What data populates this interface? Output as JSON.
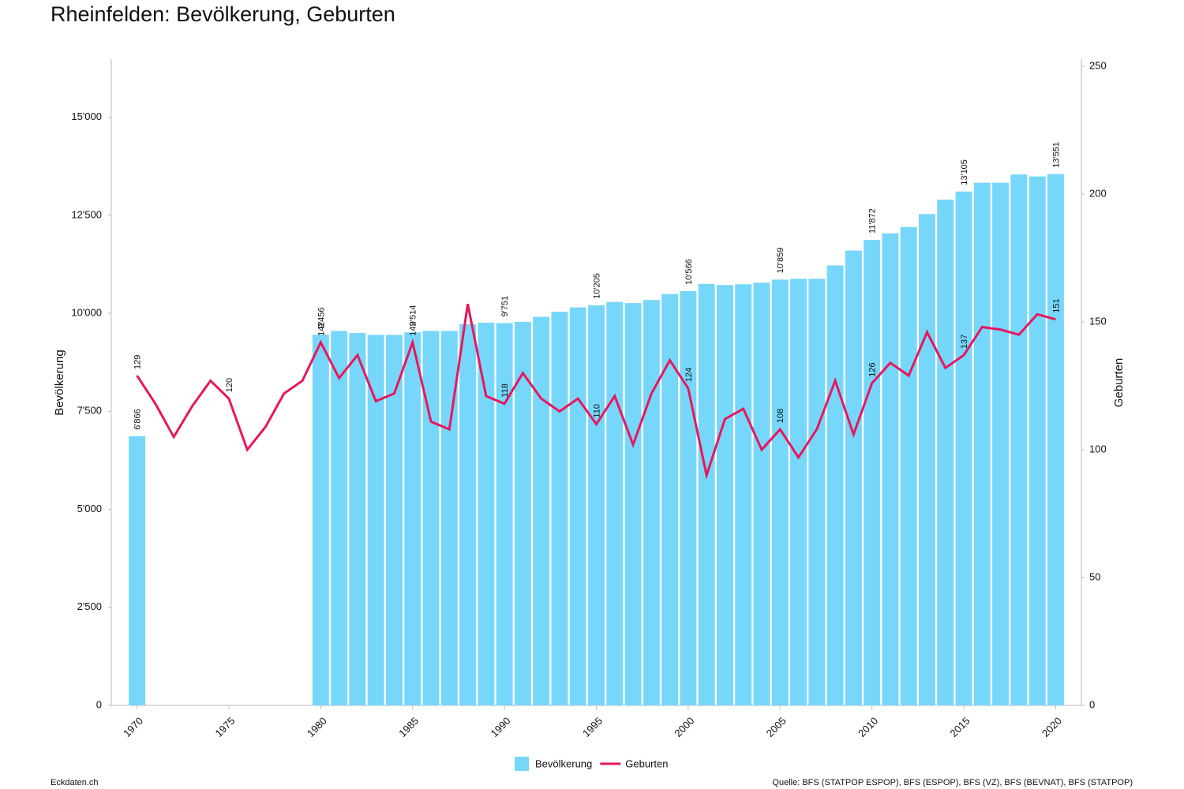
{
  "chart_data": {
    "type": "bar-line",
    "title": "Rheinfelden: Bevölkerung, Geburten",
    "y_label": "Bevölkerung",
    "y2_label": "Geburten",
    "x": [
      1970,
      1971,
      1972,
      1973,
      1974,
      1975,
      1976,
      1977,
      1978,
      1979,
      1980,
      1981,
      1982,
      1983,
      1984,
      1985,
      1986,
      1987,
      1988,
      1989,
      1990,
      1991,
      1992,
      1993,
      1994,
      1995,
      1996,
      1997,
      1998,
      1999,
      2000,
      2001,
      2002,
      2003,
      2004,
      2005,
      2006,
      2007,
      2008,
      2009,
      2010,
      2011,
      2012,
      2013,
      2014,
      2015,
      2016,
      2017,
      2018,
      2019,
      2020
    ],
    "xlim": [
      1968.6,
      2021.4
    ],
    "xticks": [
      1970,
      1975,
      1980,
      1985,
      1990,
      1995,
      2000,
      2005,
      2010,
      2015,
      2020
    ],
    "ylim": [
      0,
      16300
    ],
    "yticks": [
      0,
      {
        "value": 2500,
        "label": "2'500"
      },
      {
        "value": 5000,
        "label": "5'000"
      },
      {
        "value": 7500,
        "label": "7'500"
      },
      {
        "value": 10000,
        "label": "10'000"
      },
      {
        "value": 12500,
        "label": "12'500"
      },
      {
        "value": 15000,
        "label": "15'000"
      }
    ],
    "y2lim": [
      0,
      250
    ],
    "y2ticks": [
      0,
      50,
      100,
      150,
      200,
      250
    ],
    "grid": false,
    "legend": "bottom",
    "series": [
      {
        "name": "Bevölkerung",
        "type": "bar",
        "color": "#76d7fa",
        "values": [
          6866,
          null,
          null,
          null,
          null,
          null,
          null,
          null,
          null,
          null,
          9456,
          9550,
          9500,
          9450,
          9450,
          9514,
          9550,
          9550,
          9720,
          9760,
          9751,
          9780,
          9910,
          10040,
          10150,
          10205,
          10290,
          10260,
          10340,
          10490,
          10566,
          10750,
          10720,
          10740,
          10780,
          10859,
          10880,
          10880,
          11220,
          11600,
          11872,
          12040,
          12200,
          12530,
          12900,
          13105,
          13330,
          13330,
          13540,
          13490,
          13551
        ],
        "value_labels": [
          "6'866",
          null,
          null,
          null,
          null,
          null,
          null,
          null,
          null,
          null,
          "9'456",
          null,
          null,
          null,
          null,
          "9'514",
          null,
          null,
          null,
          null,
          "9'751",
          null,
          null,
          null,
          null,
          "10'205",
          null,
          null,
          null,
          null,
          "10'566",
          null,
          null,
          null,
          null,
          "10'859",
          null,
          null,
          null,
          null,
          "11'872",
          null,
          null,
          null,
          null,
          "13'105",
          null,
          null,
          null,
          null,
          "13'551"
        ]
      },
      {
        "name": "Geburten",
        "type": "line",
        "axis": "y2",
        "color": "#e8175d",
        "values": [
          129,
          118,
          105,
          117,
          127,
          120,
          100,
          109,
          122,
          127,
          142,
          128,
          137,
          119,
          122,
          142,
          111,
          108,
          157,
          121,
          118,
          130,
          120,
          115,
          120,
          110,
          121,
          102,
          122,
          135,
          124,
          90,
          112,
          116,
          100,
          108,
          97,
          108,
          127,
          106,
          126,
          134,
          129,
          146,
          132,
          137,
          148,
          147,
          145,
          153,
          151
        ],
        "value_labels": [
          129,
          null,
          null,
          null,
          null,
          120,
          null,
          null,
          null,
          null,
          142,
          null,
          null,
          null,
          null,
          142,
          null,
          null,
          null,
          null,
          118,
          null,
          null,
          null,
          null,
          110,
          null,
          null,
          null,
          null,
          124,
          null,
          null,
          null,
          null,
          108,
          null,
          null,
          null,
          null,
          126,
          null,
          null,
          null,
          null,
          137,
          null,
          null,
          null,
          null,
          151
        ]
      }
    ],
    "footer_left": "Eckdaten.ch",
    "footer_right": "Quelle: BFS (STATPOP ESPOP), BFS (ESPOP), BFS (VZ), BFS (BEVNAT), BFS (STATPOP)"
  }
}
